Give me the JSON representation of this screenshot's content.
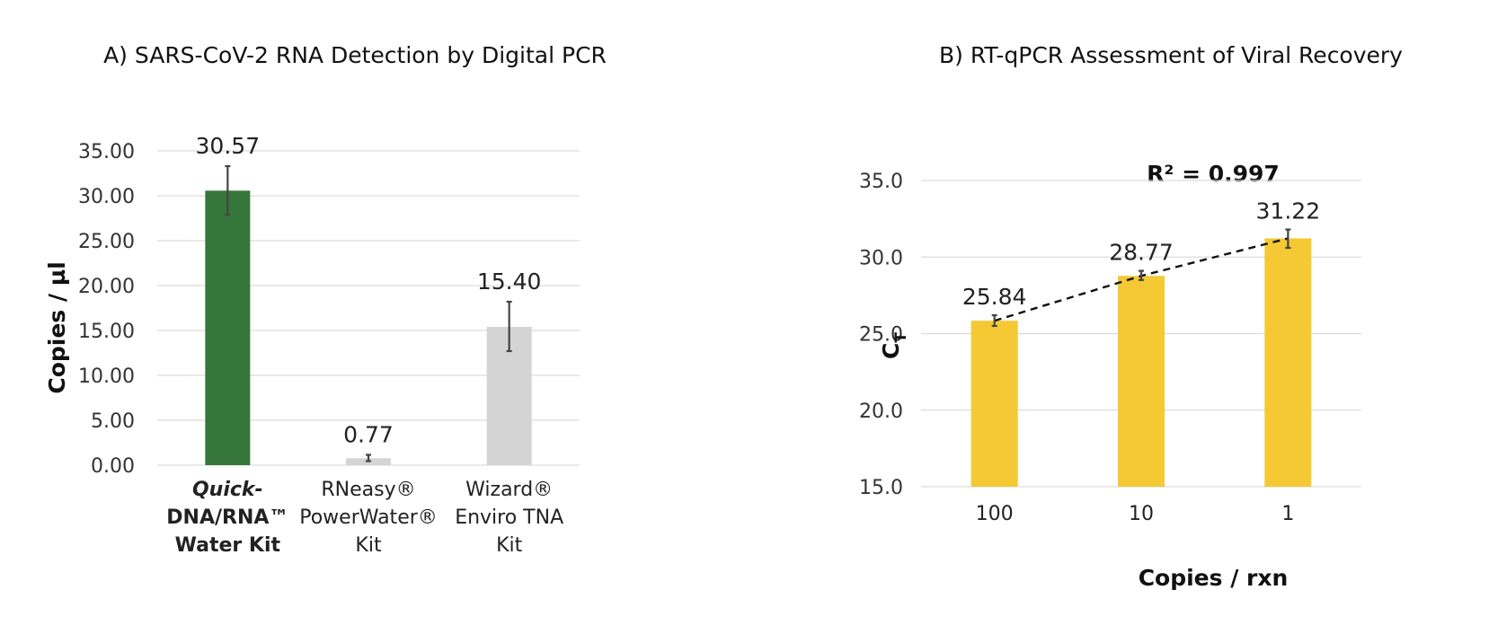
{
  "chart_data": [
    {
      "type": "bar",
      "title": "A) SARS-CoV-2 RNA Detection by Digital PCR",
      "ylabel": "Copies / µl",
      "xlabel": "",
      "ylim": [
        0,
        35
      ],
      "yticks": [
        "0.00",
        "5.00",
        "10.00",
        "15.00",
        "20.00",
        "25.00",
        "30.00",
        "35.00"
      ],
      "grid": true,
      "categories": [
        {
          "lines": [
            "Quick-",
            "DNA/RNA™",
            "Water Kit"
          ],
          "highlight": true
        },
        {
          "lines": [
            "RNeasy®",
            "PowerWater®",
            "Kit"
          ],
          "highlight": false
        },
        {
          "lines": [
            "Wizard®",
            "Enviro TNA",
            "Kit"
          ],
          "highlight": false
        }
      ],
      "values": [
        30.57,
        0.77,
        15.4
      ],
      "value_labels": [
        "30.57",
        "0.77",
        "15.40"
      ],
      "error_low": [
        27.9,
        0.45,
        12.7
      ],
      "error_high": [
        33.3,
        1.15,
        18.2
      ],
      "colors": [
        "#37763a",
        "#d4d4d4",
        "#d4d4d4"
      ],
      "highlight_color": "#2e7d32"
    },
    {
      "type": "bar",
      "title": "B) RT-qPCR Assessment of Viral Recovery",
      "annotation": "R² = 0.997",
      "ylabel": "CT",
      "ylabel_main": "C",
      "ylabel_sub": "T",
      "xlabel": "Copies / rxn",
      "ylim": [
        15,
        35
      ],
      "yticks": [
        "15.0",
        "20.0",
        "25.0",
        "30.0",
        "35.0"
      ],
      "grid": true,
      "categories": [
        "100",
        "10",
        "1"
      ],
      "values": [
        25.84,
        28.77,
        31.22
      ],
      "value_labels": [
        "25.84",
        "28.77",
        "31.22"
      ],
      "error_low": [
        25.5,
        28.5,
        30.6
      ],
      "error_high": [
        26.2,
        29.1,
        31.8
      ],
      "trendline": "dashed",
      "bar_color": "#f4c933"
    }
  ]
}
